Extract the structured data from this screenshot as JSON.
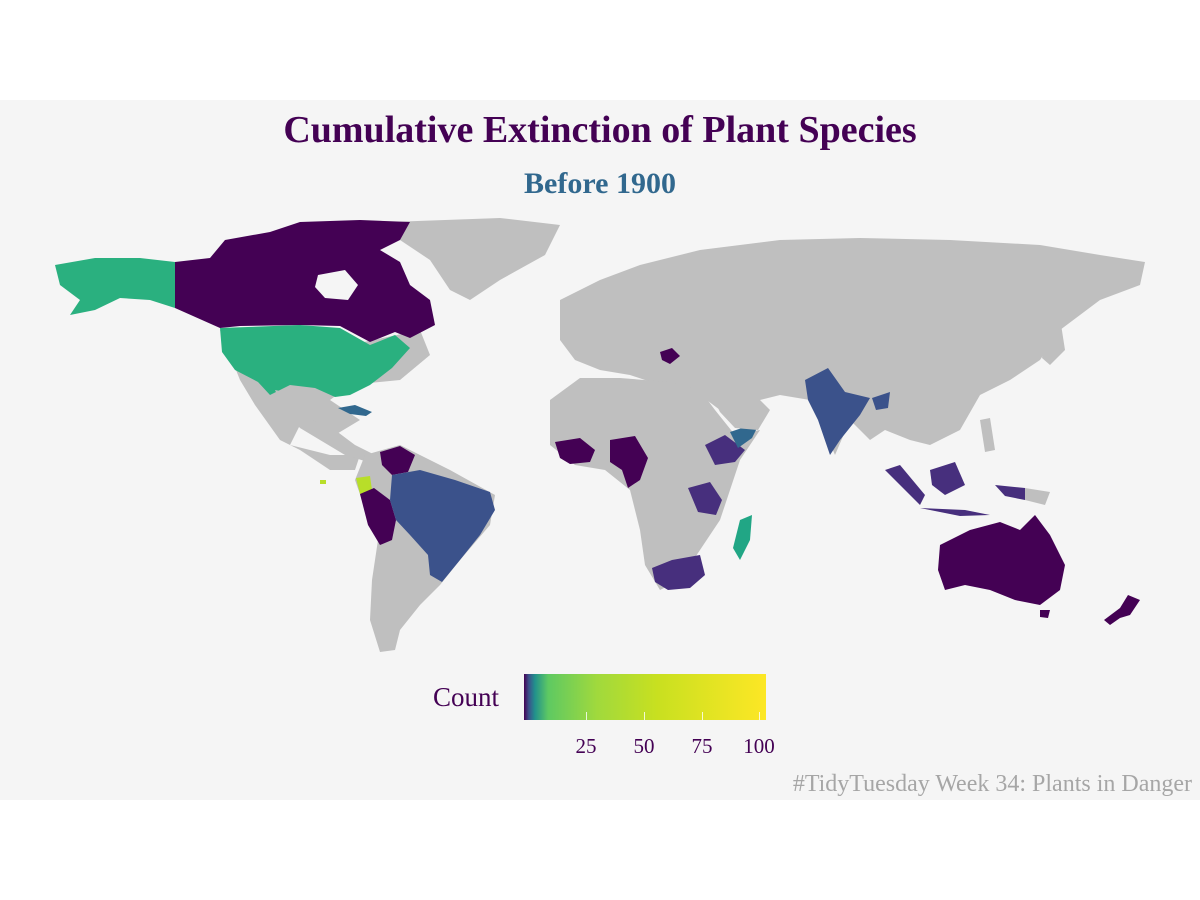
{
  "title": "Cumulative Extinction of Plant Species",
  "subtitle": "Before 1900",
  "caption": "#TidyTuesday Week 34: Plants in Danger",
  "legend": {
    "title": "Count",
    "ticks": [
      "25",
      "50",
      "75",
      "100"
    ],
    "range": [
      1,
      103
    ],
    "palette": "viridis"
  },
  "colors": {
    "panel_background": "#f5f5f5",
    "no_data_land": "#bfbfbf",
    "title": "#440154",
    "subtitle": "#31688e",
    "caption": "#a6a6a6"
  },
  "highlighted_regions": [
    {
      "name": "United States",
      "level": "teal-green"
    },
    {
      "name": "Canada",
      "level": "dark purple"
    },
    {
      "name": "Cuba",
      "level": "blue"
    },
    {
      "name": "Venezuela",
      "level": "dark purple"
    },
    {
      "name": "Ecuador",
      "level": "light green"
    },
    {
      "name": "Peru",
      "level": "dark purple"
    },
    {
      "name": "Brazil",
      "level": "blue"
    },
    {
      "name": "West Africa",
      "level": "dark purple"
    },
    {
      "name": "Cameroon",
      "level": "dark purple"
    },
    {
      "name": "Ethiopia",
      "level": "purple"
    },
    {
      "name": "Somalia",
      "level": "blue"
    },
    {
      "name": "Tanzania",
      "level": "purple"
    },
    {
      "name": "South Africa",
      "level": "purple"
    },
    {
      "name": "Madagascar",
      "level": "teal"
    },
    {
      "name": "Greece",
      "level": "dark purple"
    },
    {
      "name": "India",
      "level": "blue"
    },
    {
      "name": "Indonesia",
      "level": "purple"
    },
    {
      "name": "Australia",
      "level": "dark purple"
    },
    {
      "name": "New Zealand",
      "level": "dark purple"
    }
  ]
}
